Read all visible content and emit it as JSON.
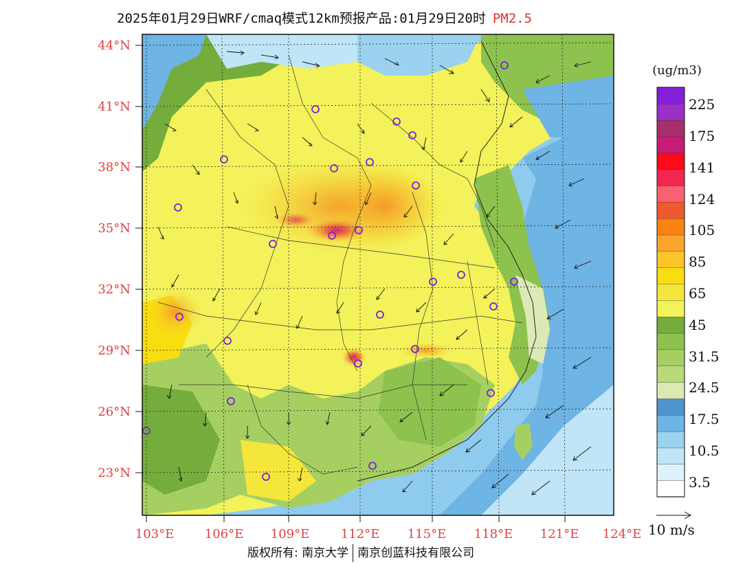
{
  "header": {
    "title": "2025年01月29日WRF/cmaq模式12km预报产品:01月29日20时",
    "variable": "PM2.5"
  },
  "map": {
    "lat_labels": [
      "44°N",
      "41°N",
      "38°N",
      "35°N",
      "32°N",
      "29°N",
      "26°N",
      "23°N"
    ],
    "lon_labels": [
      "103°E",
      "106°E",
      "109°E",
      "112°E",
      "115°E",
      "118°E",
      "121°E",
      "124°E"
    ],
    "colors": {
      "ocean": "#8fcbee",
      "land_base": "#f3f25a",
      "hotspot": "#e05a7a"
    }
  },
  "colorbar": {
    "unit": "(ug/m3)",
    "labels": [
      "225",
      "175",
      "141",
      "124",
      "105",
      "85",
      "65",
      "45",
      "31.5",
      "24.5",
      "17.5",
      "10.5",
      "3.5"
    ],
    "colors": [
      "#ffffff",
      "#dff2fb",
      "#bfe5f7",
      "#9ad2f0",
      "#6eb4e4",
      "#4f94cd",
      "#dde9b5",
      "#b9d97a",
      "#a6cf62",
      "#8cc24d",
      "#74ad3c",
      "#f2f25a",
      "#f5e63b",
      "#f8dd10",
      "#fdc628",
      "#fba52e",
      "#f98310",
      "#ee5a2e",
      "#fa6070",
      "#f2274f",
      "#ff0a1a",
      "#c81a78",
      "#a82e6a",
      "#9a30c8",
      "#8420d8"
    ]
  },
  "wind_legend": {
    "label": "10 m/s"
  },
  "footer": {
    "left": "版权所有: 南京大学",
    "right": "南京创蓝科技有限公司"
  }
}
